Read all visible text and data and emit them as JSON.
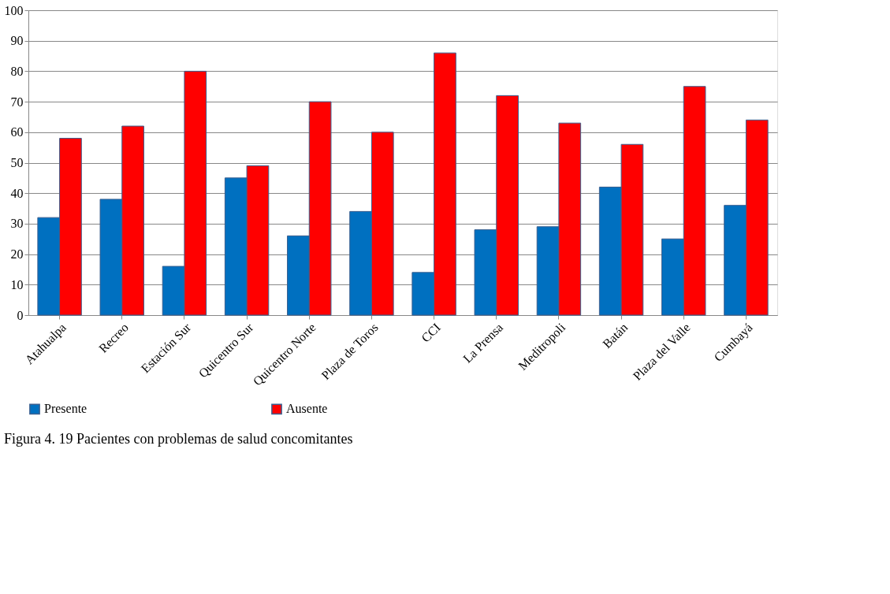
{
  "chart_data": {
    "type": "bar",
    "categories": [
      "Atahualpa",
      "Recreo",
      "Estación Sur",
      "Quicentro Sur",
      "Quicentro Norte",
      "Plaza de Toros",
      "CCI",
      "La Prensa",
      "Meditropoli",
      "Batán",
      "Plaza del Valle",
      "Cumbayá"
    ],
    "series": [
      {
        "name": "Presente",
        "color": "#0070c0",
        "values": [
          32,
          38,
          16,
          45,
          26,
          34,
          14,
          28,
          29,
          42,
          25,
          36
        ]
      },
      {
        "name": "Ausente",
        "color": "#ff0000",
        "values": [
          58,
          62,
          80,
          49,
          70,
          60,
          86,
          72,
          63,
          56,
          75,
          64
        ]
      }
    ],
    "ylim": [
      0,
      100
    ],
    "yticks": [
      0,
      10,
      20,
      30,
      40,
      50,
      60,
      70,
      80,
      90,
      100
    ],
    "grid": "y",
    "legend": "bottom",
    "annotations": [
      "Figura 4. 19  Pacientes con problemas de salud concomitantes"
    ]
  }
}
